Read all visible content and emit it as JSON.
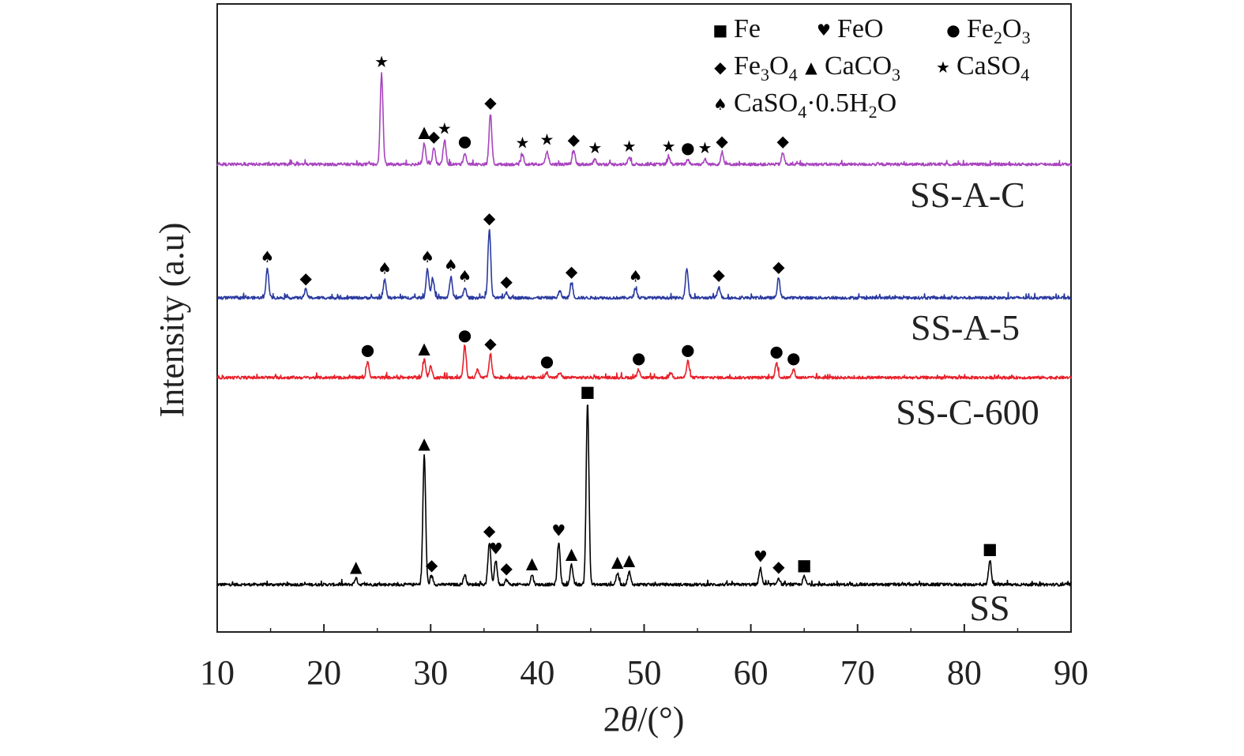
{
  "chart_data": {
    "type": "line",
    "title": "",
    "xlabel": "2θ/(°)",
    "ylabel": "Intensity (a.u)",
    "xlim": [
      10,
      90
    ],
    "x_ticks": [
      10,
      20,
      30,
      40,
      50,
      60,
      70,
      80,
      90
    ],
    "y_ticks_shown": false,
    "grid": false,
    "legend_position": "top-right",
    "legend": [
      {
        "marker": "square",
        "glyph": "■",
        "label": "Fe"
      },
      {
        "marker": "heart",
        "glyph": "♥",
        "label": "FeO"
      },
      {
        "marker": "circle",
        "glyph": "●",
        "label": "Fe",
        "sub1": "2",
        "mid": "O",
        "sub2": "3"
      },
      {
        "marker": "diamond",
        "glyph": "◆",
        "label": "Fe",
        "sub1": "3",
        "mid": "O",
        "sub2": "4"
      },
      {
        "marker": "triangle",
        "glyph": "▲",
        "label": "CaCO",
        "sub1": "3"
      },
      {
        "marker": "star",
        "glyph": "★",
        "label": "CaSO",
        "sub1": "4"
      },
      {
        "marker": "spade",
        "glyph": "♠",
        "label": "CaSO",
        "sub1": "4",
        "mid": "·0.5H",
        "sub2": "2",
        "tail": "O"
      }
    ],
    "series": [
      {
        "name": "SS",
        "color": "#000000",
        "peaks": [
          {
            "x": 23.0,
            "h": 0.4,
            "m": "triangle"
          },
          {
            "x": 29.4,
            "h": 8.0,
            "m": "triangle"
          },
          {
            "x": 30.1,
            "h": 0.5,
            "m": "diamond"
          },
          {
            "x": 33.2,
            "h": 0.6
          },
          {
            "x": 35.5,
            "h": 2.6,
            "m": "diamond"
          },
          {
            "x": 36.1,
            "h": 1.5,
            "m": "heart"
          },
          {
            "x": 37.1,
            "h": 0.3,
            "m": "diamond"
          },
          {
            "x": 39.5,
            "h": 0.6,
            "m": "triangle"
          },
          {
            "x": 42.0,
            "h": 2.6,
            "m": "heart"
          },
          {
            "x": 43.2,
            "h": 1.2,
            "m": "triangle"
          },
          {
            "x": 44.7,
            "h": 11.2,
            "m": "square"
          },
          {
            "x": 47.5,
            "h": 0.7,
            "m": "triangle"
          },
          {
            "x": 48.6,
            "h": 0.8,
            "m": "triangle"
          },
          {
            "x": 60.9,
            "h": 1.0,
            "m": "heart"
          },
          {
            "x": 62.6,
            "h": 0.4,
            "m": "diamond"
          },
          {
            "x": 65.0,
            "h": 0.5,
            "m": "square"
          },
          {
            "x": 82.4,
            "h": 1.5,
            "m": "square"
          }
        ]
      },
      {
        "name": "SS-C-600",
        "color": "#e8202a",
        "peaks": [
          {
            "x": 24.1,
            "h": 1.0,
            "m": "circle"
          },
          {
            "x": 29.4,
            "h": 1.1,
            "m": "triangle"
          },
          {
            "x": 30.0,
            "h": 0.7
          },
          {
            "x": 33.2,
            "h": 1.9,
            "m": "circle"
          },
          {
            "x": 34.4,
            "h": 0.5
          },
          {
            "x": 35.6,
            "h": 1.4,
            "m": "diamond"
          },
          {
            "x": 40.9,
            "h": 0.3,
            "m": "circle"
          },
          {
            "x": 42.1,
            "h": 0.3
          },
          {
            "x": 49.5,
            "h": 0.5,
            "m": "circle"
          },
          {
            "x": 52.5,
            "h": 0.3
          },
          {
            "x": 54.1,
            "h": 1.0,
            "m": "circle"
          },
          {
            "x": 62.4,
            "h": 0.9,
            "m": "circle"
          },
          {
            "x": 64.0,
            "h": 0.5,
            "m": "circle"
          }
        ]
      },
      {
        "name": "SS-A-5",
        "color": "#2a3aa0",
        "peaks": [
          {
            "x": 14.7,
            "h": 1.8,
            "m": "spade"
          },
          {
            "x": 18.3,
            "h": 0.5,
            "m": "diamond"
          },
          {
            "x": 25.7,
            "h": 1.1,
            "m": "spade"
          },
          {
            "x": 29.7,
            "h": 1.8,
            "m": "spade"
          },
          {
            "x": 30.2,
            "h": 1.2
          },
          {
            "x": 31.9,
            "h": 1.3,
            "m": "spade"
          },
          {
            "x": 33.2,
            "h": 0.6,
            "m": "spade"
          },
          {
            "x": 35.5,
            "h": 4.2,
            "m": "diamond"
          },
          {
            "x": 37.1,
            "h": 0.3,
            "m": "diamond"
          },
          {
            "x": 42.1,
            "h": 0.4
          },
          {
            "x": 43.2,
            "h": 0.9,
            "m": "diamond"
          },
          {
            "x": 49.2,
            "h": 0.6,
            "m": "spade"
          },
          {
            "x": 54.0,
            "h": 1.8
          },
          {
            "x": 57.0,
            "h": 0.7,
            "m": "diamond"
          },
          {
            "x": 62.6,
            "h": 1.2,
            "m": "diamond"
          }
        ]
      },
      {
        "name": "SS-A-C",
        "color": "#a844be",
        "peaks": [
          {
            "x": 25.4,
            "h": 5.6,
            "m": "star"
          },
          {
            "x": 29.4,
            "h": 1.3,
            "m": "triangle"
          },
          {
            "x": 30.3,
            "h": 1.0,
            "m": "diamond"
          },
          {
            "x": 31.3,
            "h": 1.5,
            "m": "star"
          },
          {
            "x": 33.2,
            "h": 0.7,
            "m": "circle"
          },
          {
            "x": 35.6,
            "h": 3.1,
            "m": "diamond"
          },
          {
            "x": 38.6,
            "h": 0.6,
            "m": "star"
          },
          {
            "x": 40.9,
            "h": 0.8,
            "m": "star"
          },
          {
            "x": 43.4,
            "h": 0.8,
            "m": "diamond"
          },
          {
            "x": 45.4,
            "h": 0.3,
            "m": "star"
          },
          {
            "x": 48.6,
            "h": 0.4,
            "m": "star"
          },
          {
            "x": 52.3,
            "h": 0.4,
            "m": "star"
          },
          {
            "x": 54.1,
            "h": 0.3,
            "m": "circle"
          },
          {
            "x": 55.7,
            "h": 0.3,
            "m": "star"
          },
          {
            "x": 57.3,
            "h": 0.7,
            "m": "diamond"
          },
          {
            "x": 63.0,
            "h": 0.7,
            "m": "diamond"
          }
        ]
      }
    ]
  }
}
